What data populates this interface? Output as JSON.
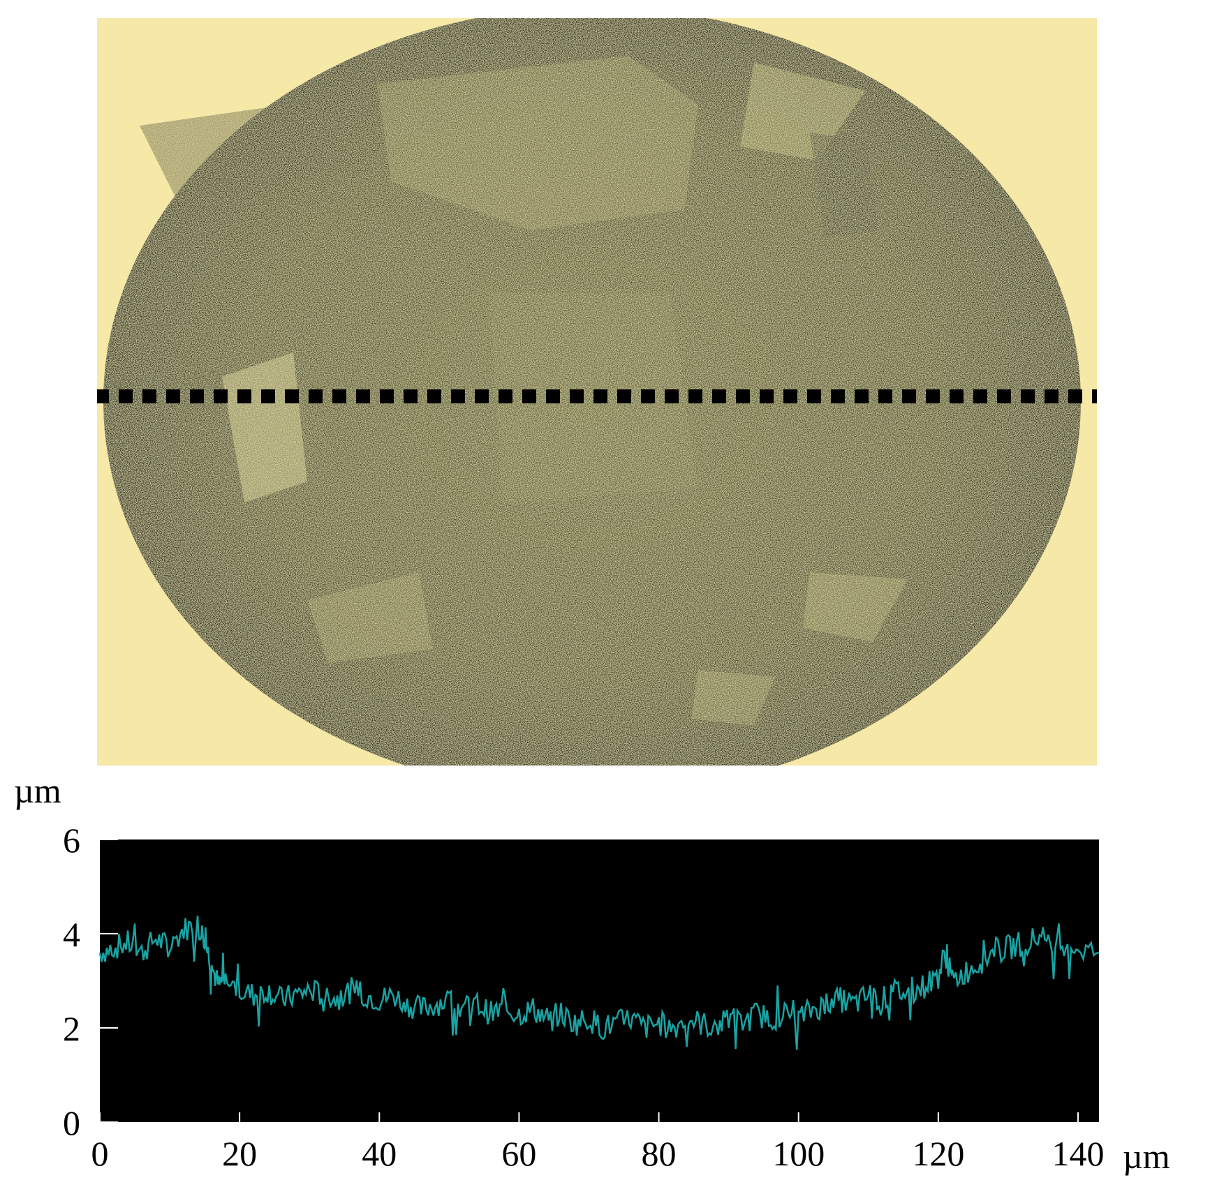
{
  "micrograph": {
    "background_color": "#f6e8a6",
    "spot_color": "#4b4a26",
    "scan_line": "dotted-black"
  },
  "chart_data": {
    "type": "line",
    "title": "",
    "xlabel": "",
    "ylabel": "",
    "x_unit": "µm",
    "y_unit": "µm",
    "xlim": [
      0,
      143
    ],
    "ylim": [
      0,
      6
    ],
    "x_ticks": [
      "0",
      "20",
      "40",
      "60",
      "80",
      "100",
      "120",
      "140"
    ],
    "y_ticks": [
      "0",
      "2",
      "4",
      "6"
    ],
    "plot_background": "#000000",
    "line_color": "#1aa3a3",
    "grid": false,
    "legend": "none",
    "series": [
      {
        "x": [
          0,
          2,
          4,
          6,
          8,
          10,
          12,
          14,
          15,
          16,
          17,
          18,
          20,
          22,
          24,
          26,
          28,
          30,
          32,
          34,
          36,
          38,
          40,
          42,
          44,
          46,
          48,
          50,
          52,
          54,
          56,
          58,
          60,
          62,
          64,
          66,
          68,
          70,
          72,
          74,
          76,
          78,
          80,
          82,
          84,
          86,
          88,
          90,
          92,
          94,
          96,
          98,
          100,
          102,
          104,
          106,
          108,
          110,
          112,
          114,
          116,
          118,
          120,
          121,
          122,
          124,
          126,
          128,
          130,
          132,
          134,
          136,
          138,
          140,
          143
        ],
        "values": [
          3.6,
          3.7,
          3.8,
          3.6,
          3.9,
          3.7,
          4.1,
          4.2,
          3.9,
          3.3,
          2.9,
          3.0,
          2.8,
          2.7,
          2.8,
          2.6,
          2.7,
          2.8,
          2.7,
          2.6,
          2.8,
          2.7,
          2.6,
          2.7,
          2.5,
          2.4,
          2.5,
          2.6,
          2.4,
          2.5,
          2.3,
          2.4,
          2.3,
          2.4,
          2.2,
          2.3,
          2.1,
          2.2,
          2.0,
          2.1,
          2.2,
          2.0,
          2.1,
          2.0,
          2.2,
          2.1,
          2.0,
          2.2,
          2.1,
          2.3,
          2.2,
          2.3,
          2.2,
          2.4,
          2.5,
          2.6,
          2.5,
          2.7,
          2.6,
          2.8,
          2.7,
          2.9,
          3.1,
          3.6,
          3.0,
          3.2,
          3.4,
          3.6,
          3.7,
          3.8,
          3.9,
          3.7,
          3.8,
          3.7,
          3.6
        ]
      }
    ]
  }
}
